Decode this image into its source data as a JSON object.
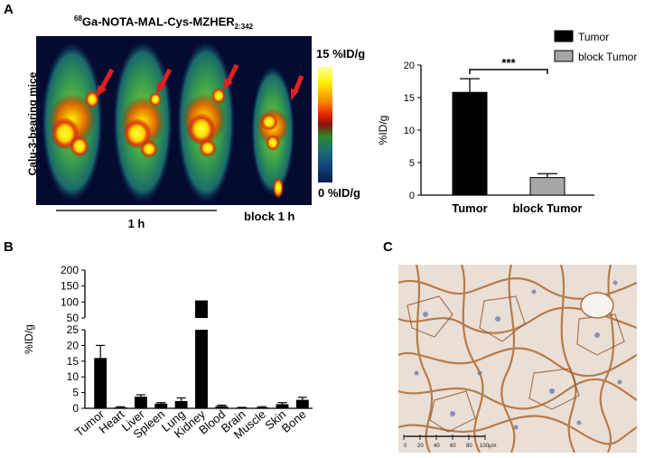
{
  "panels": {
    "a": {
      "letter": "A"
    },
    "b": {
      "letter": "B"
    },
    "c": {
      "letter": "C"
    }
  },
  "pet": {
    "title_prefix": "68",
    "title_main": "Ga-NOTA-MAL-Cys-MZHER",
    "title_sub": "2:342",
    "ylabel": "Calu-3-bearing mice",
    "scale_max": "15 %ID/g",
    "scale_min": "0 %ID/g",
    "group_label": "1 h",
    "block_label": "block 1 h",
    "arrow_color": "#e02020"
  },
  "chart_data": [
    {
      "type": "bar",
      "categories": [
        "Tumor",
        "block Tumor"
      ],
      "series": [
        {
          "name": "Tumor",
          "values": [
            15.8,
            null
          ],
          "errors": [
            2.1,
            null
          ],
          "color": "#000000"
        },
        {
          "name": "block Tumor",
          "values": [
            null,
            2.7
          ],
          "errors": [
            null,
            0.6
          ],
          "color": "#a6a6a6"
        }
      ],
      "ylabel": "%ID/g",
      "ylim": [
        0,
        20
      ],
      "yticks": [
        "0",
        "5",
        "10",
        "15",
        "20"
      ],
      "significance": "***",
      "legend": "top-right"
    },
    {
      "type": "bar",
      "categories": [
        "Tumor",
        "Heart",
        "Liver",
        "Spleen",
        "Lung",
        "Kidney",
        "Blood",
        "Brain",
        "Muscle",
        "Skin",
        "Bone"
      ],
      "values": [
        16.0,
        0.3,
        3.7,
        1.5,
        2.3,
        105,
        0.7,
        0.2,
        0.3,
        1.3,
        2.7
      ],
      "errors": [
        4.0,
        0.2,
        0.6,
        0.3,
        1.0,
        0,
        0.3,
        0.1,
        0.2,
        0.5,
        0.8
      ],
      "ylabel": "%ID/g",
      "ylim_lower": [
        0,
        25
      ],
      "ylim_upper": [
        50,
        200
      ],
      "yticks_lower": [
        "0",
        "5",
        "10",
        "15",
        "20",
        "25"
      ],
      "yticks_upper": [
        "50",
        "100",
        "150",
        "200"
      ],
      "axis_break": true
    }
  ],
  "histology": {
    "scale_ticks": [
      "0",
      "20",
      "40",
      "60",
      "80",
      "100µm"
    ]
  }
}
